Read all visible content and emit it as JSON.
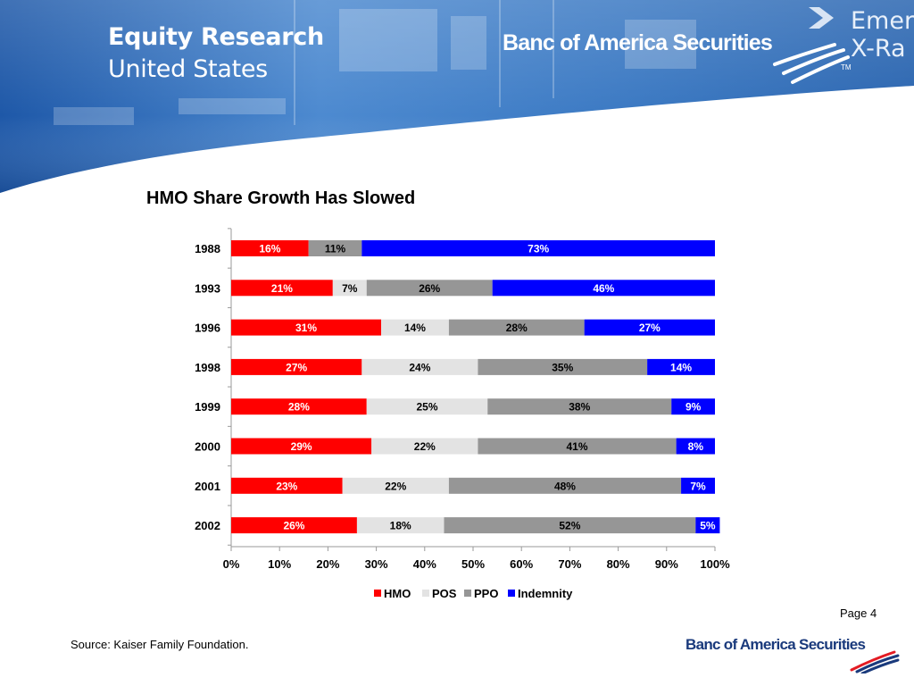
{
  "header": {
    "title": "Equity Research",
    "subtitle": "United States",
    "brand": "Banc of America Securities",
    "sign_text": "Emerg\nX-Ra",
    "trademark": "TM"
  },
  "footer": {
    "page": "Page 4",
    "source": "Source: Kaiser Family Foundation.",
    "brand": "Banc of America Securities"
  },
  "colors": {
    "HMO": "#ff0000",
    "POS": "#e3e3e3",
    "PPO": "#969696",
    "Indemnity": "#0000ff",
    "header_blue": "#3f7cc4",
    "brand_navy": "#1a3a7c"
  },
  "chart_data": {
    "type": "bar",
    "orientation": "horizontal",
    "stacked": true,
    "title": "HMO Share Growth Has Slowed",
    "categories": [
      "1988",
      "1993",
      "1996",
      "1998",
      "1999",
      "2000",
      "2001",
      "2002"
    ],
    "series": [
      {
        "name": "HMO",
        "values": [
          16,
          21,
          31,
          27,
          28,
          29,
          23,
          26
        ]
      },
      {
        "name": "POS",
        "values": [
          0,
          7,
          14,
          24,
          25,
          22,
          22,
          18
        ]
      },
      {
        "name": "PPO",
        "values": [
          11,
          26,
          28,
          35,
          38,
          41,
          48,
          52
        ]
      },
      {
        "name": "Indemnity",
        "values": [
          73,
          46,
          27,
          14,
          9,
          8,
          7,
          5
        ]
      }
    ],
    "data_labels": [
      [
        "16%",
        "",
        "11%",
        "73%"
      ],
      [
        "21%",
        "7%",
        "26%",
        "46%"
      ],
      [
        "31%",
        "14%",
        "28%",
        "27%"
      ],
      [
        "27%",
        "24%",
        "35%",
        "14%"
      ],
      [
        "28%",
        "25%",
        "38%",
        "9%"
      ],
      [
        "29%",
        "22%",
        "41%",
        "8%"
      ],
      [
        "23%",
        "22%",
        "48%",
        "7%"
      ],
      [
        "26%",
        "18%",
        "52%",
        "5%"
      ]
    ],
    "xlim": [
      0,
      100
    ],
    "xticks": [
      "0%",
      "10%",
      "20%",
      "30%",
      "40%",
      "50%",
      "60%",
      "70%",
      "80%",
      "90%",
      "100%"
    ],
    "legend_position": "bottom",
    "grid": false
  }
}
